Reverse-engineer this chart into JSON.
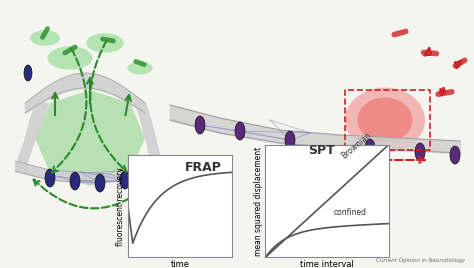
{
  "fig_width": 4.74,
  "fig_height": 2.68,
  "dpi": 100,
  "bg_color": "#f5f5f0",
  "frap_title": "FRAP",
  "spt_title": "SPT",
  "frap_xlabel": "time",
  "frap_ylabel": "fluorescent recovery",
  "spt_xlabel": "time interval",
  "spt_ylabel": "mean squared displacement",
  "brownian_label": "Brownian",
  "confined_label": "confined",
  "journal_label": "Current Opinion in Neurobiology",
  "green_color": "#2a8a2a",
  "red_color": "#cc2222",
  "blue_oval_color": "#2a2a7a",
  "purple_oval_color": "#5a2a7a",
  "membrane_color": "#c8c8c8",
  "membrane_edge_color": "#a0a0a0",
  "graph_line_color": "#555555",
  "graph_bg": "#ffffff",
  "graph_border_color": "#888888"
}
